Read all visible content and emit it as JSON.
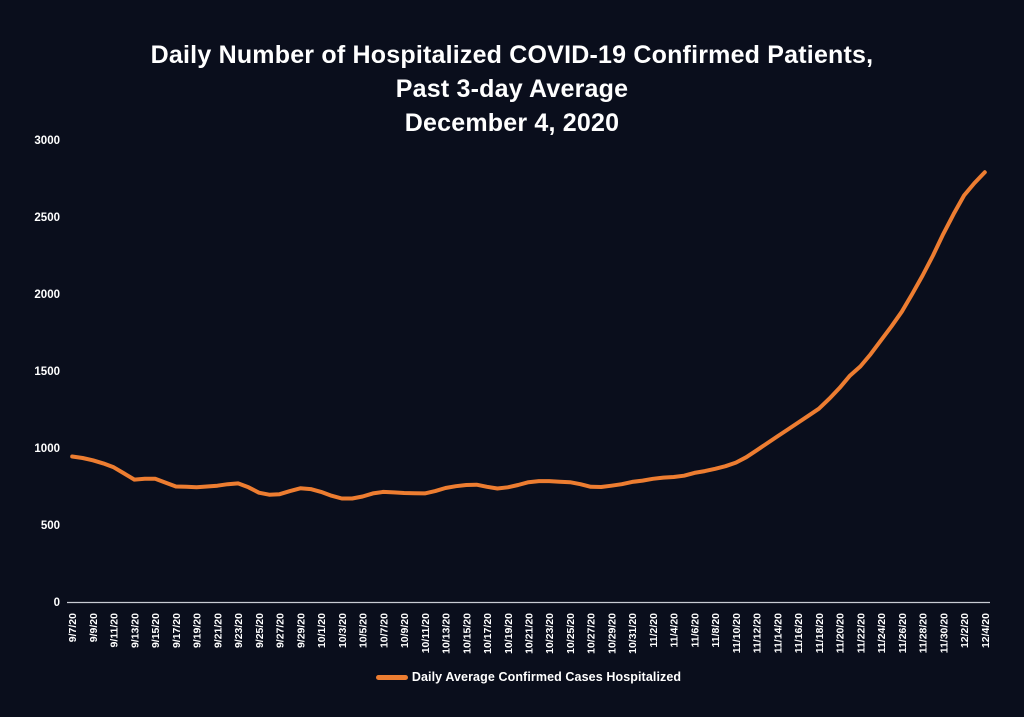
{
  "colors": {
    "background": "#0a0e1c",
    "text": "#ffffff",
    "axis_line": "#c9ccd4",
    "series_orange": "#ED7D31"
  },
  "chart_data": {
    "type": "line",
    "title_lines": [
      "Daily Number of Hospitalized COVID-19 Confirmed Patients,",
      "Past 3-day Average",
      "December 4, 2020"
    ],
    "x": [
      "9/7/20",
      "9/8/20",
      "9/9/20",
      "9/10/20",
      "9/11/20",
      "9/12/20",
      "9/13/20",
      "9/14/20",
      "9/15/20",
      "9/16/20",
      "9/17/20",
      "9/18/20",
      "9/19/20",
      "9/20/20",
      "9/21/20",
      "9/22/20",
      "9/23/20",
      "9/24/20",
      "9/25/20",
      "9/26/20",
      "9/27/20",
      "9/28/20",
      "9/29/20",
      "9/30/20",
      "10/1/20",
      "10/2/20",
      "10/3/20",
      "10/4/20",
      "10/5/20",
      "10/6/20",
      "10/7/20",
      "10/8/20",
      "10/9/20",
      "10/10/20",
      "10/11/20",
      "10/12/20",
      "10/13/20",
      "10/14/20",
      "10/15/20",
      "10/16/20",
      "10/17/20",
      "10/18/20",
      "10/19/20",
      "10/20/20",
      "10/21/20",
      "10/22/20",
      "10/23/20",
      "10/24/20",
      "10/25/20",
      "10/26/20",
      "10/27/20",
      "10/28/20",
      "10/29/20",
      "10/30/20",
      "10/31/20",
      "11/1/20",
      "11/2/20",
      "11/3/20",
      "11/4/20",
      "11/5/20",
      "11/6/20",
      "11/7/20",
      "11/8/20",
      "11/9/20",
      "11/10/20",
      "11/11/20",
      "11/12/20",
      "11/13/20",
      "11/14/20",
      "11/15/20",
      "11/16/20",
      "11/17/20",
      "11/18/20",
      "11/19/20",
      "11/20/20",
      "11/21/20",
      "11/22/20",
      "11/23/20",
      "11/24/20",
      "11/25/20",
      "11/26/20",
      "11/27/20",
      "11/28/20",
      "11/29/20",
      "11/30/20",
      "12/1/20",
      "12/2/20",
      "12/3/20",
      "12/4/20"
    ],
    "x_tick_every": 2,
    "ylim": [
      0,
      3000
    ],
    "yticks": [
      0,
      500,
      1000,
      1500,
      2000,
      2500,
      3000
    ],
    "grid": false,
    "legend_position": "bottom",
    "series": [
      {
        "name": "Daily Average Confirmed Cases Hospitalized",
        "color": "#ED7D31",
        "values": [
          945,
          935,
          920,
          900,
          875,
          835,
          795,
          800,
          800,
          775,
          750,
          748,
          745,
          750,
          755,
          765,
          770,
          745,
          710,
          697,
          700,
          720,
          738,
          733,
          715,
          690,
          672,
          672,
          685,
          705,
          715,
          712,
          708,
          706,
          705,
          720,
          740,
          752,
          760,
          762,
          748,
          737,
          745,
          760,
          778,
          785,
          785,
          781,
          778,
          765,
          748,
          747,
          755,
          765,
          780,
          788,
          800,
          808,
          812,
          820,
          838,
          850,
          865,
          882,
          905,
          940,
          985,
          1030,
          1075,
          1120,
          1165,
          1210,
          1255,
          1320,
          1390,
          1470,
          1530,
          1610,
          1700,
          1790,
          1885,
          2000,
          2120,
          2250,
          2390,
          2520,
          2640,
          2720,
          2790
        ]
      }
    ]
  }
}
